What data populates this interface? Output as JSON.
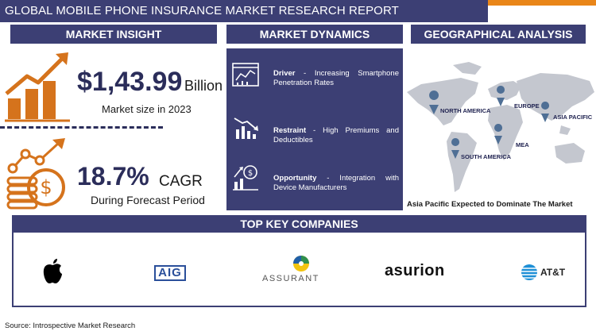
{
  "title": "GLOBAL MOBILE PHONE INSURANCE MARKET RESEARCH REPORT",
  "colors": {
    "navy": "#3c3f74",
    "orange": "#d5731c",
    "accent": "#e98619"
  },
  "sections": {
    "insight": "MARKET INSIGHT",
    "dynamics": "MARKET DYNAMICS",
    "geo": "GEOGRAPHICAL ANALYSIS"
  },
  "insight": {
    "market_size": "$1,43.99",
    "market_unit": "Billion",
    "market_caption": "Market size in 2023",
    "cagr_value": "18.7%",
    "cagr_label": "CAGR",
    "cagr_caption": "During Forecast Period"
  },
  "dynamics": [
    {
      "label": "Driver",
      "text": " - Increasing Smartphone Penetration Rates",
      "icon": "dashboard-chart-icon"
    },
    {
      "label": "Restraint",
      "text": " - High Premiums and Deductibles",
      "icon": "declining-chart-icon"
    },
    {
      "label": "Opportunity",
      "text": " - Integration with Device Manufacturers",
      "icon": "growth-coin-icon"
    }
  ],
  "geo": {
    "regions": [
      "NORTH AMERICA",
      "EUROPE",
      "ASIA PACIFIC",
      "MEA",
      "SOUTH AMERICA"
    ],
    "footer": "Asia Pacific Expected to Dominate The Market"
  },
  "companies": {
    "heading": "TOP KEY COMPANIES",
    "logos": [
      "Apple",
      "AIG",
      "ASSURANT",
      "asurion",
      "AT&T"
    ],
    "aig": "AIG",
    "assurant": "ASSURANT",
    "asurion": "asurion",
    "att": "AT&T"
  },
  "source": "Source: Introspective Market Research"
}
